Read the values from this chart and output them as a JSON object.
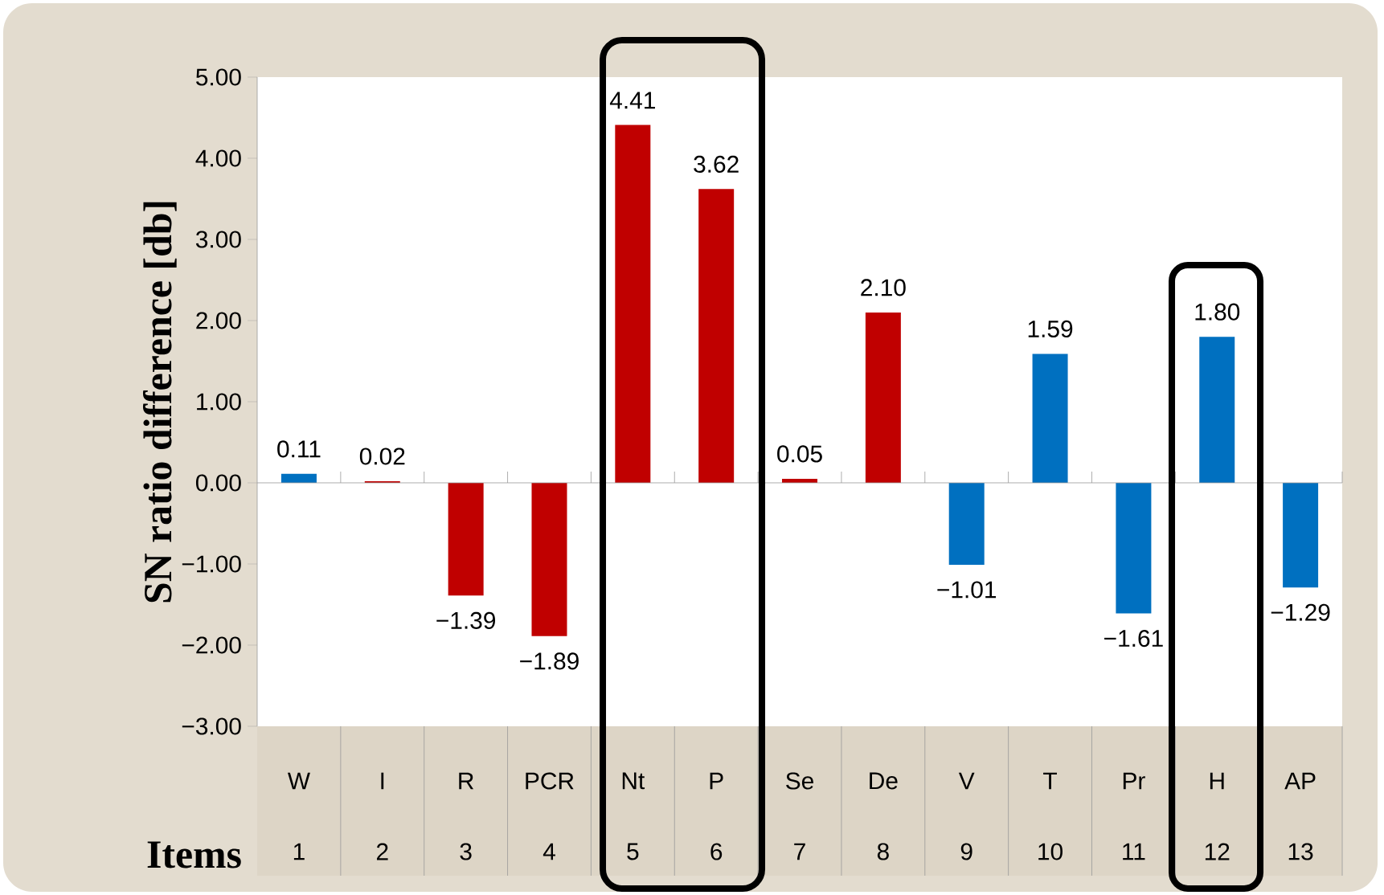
{
  "chart_data": {
    "type": "bar",
    "ylabel": "SN ratio difference [db]",
    "xlabel": "Items",
    "categories": [
      "W",
      "I",
      "R",
      "PCR",
      "Nt",
      "P",
      "Se",
      "De",
      "V",
      "T",
      "Pr",
      "H",
      "AP"
    ],
    "annotations": [
      "1",
      "2",
      "3",
      "4",
      "5",
      "6",
      "7",
      "8",
      "9",
      "10",
      "11",
      "12",
      "13"
    ],
    "values": [
      0.11,
      0.02,
      -1.39,
      -1.89,
      4.41,
      3.62,
      0.05,
      2.1,
      -1.01,
      1.59,
      -1.61,
      1.8,
      -1.29
    ],
    "value_labels": [
      "0.11",
      "0.02",
      "−1.39",
      "−1.89",
      "4.41",
      "3.62",
      "0.05",
      "2.10",
      "−1.01",
      "1.59",
      "−1.61",
      "1.80",
      "−1.29"
    ],
    "colors": [
      "#0070c0",
      "#c00000",
      "#c00000",
      "#c00000",
      "#c00000",
      "#c00000",
      "#c00000",
      "#c00000",
      "#0070c0",
      "#0070c0",
      "#0070c0",
      "#0070c0",
      "#0070c0"
    ],
    "ylim": [
      -3,
      5
    ],
    "yticks": [
      {
        "value": -3,
        "label": "−3.00"
      },
      {
        "value": -2,
        "label": "−2.00"
      },
      {
        "value": -1,
        "label": "−1.00"
      },
      {
        "value": 0,
        "label": "0.00"
      },
      {
        "value": 1,
        "label": "1.00"
      },
      {
        "value": 2,
        "label": "2.00"
      },
      {
        "value": 3,
        "label": "3.00"
      },
      {
        "value": 4,
        "label": "4.00"
      },
      {
        "value": 5,
        "label": "5.00"
      }
    ]
  }
}
